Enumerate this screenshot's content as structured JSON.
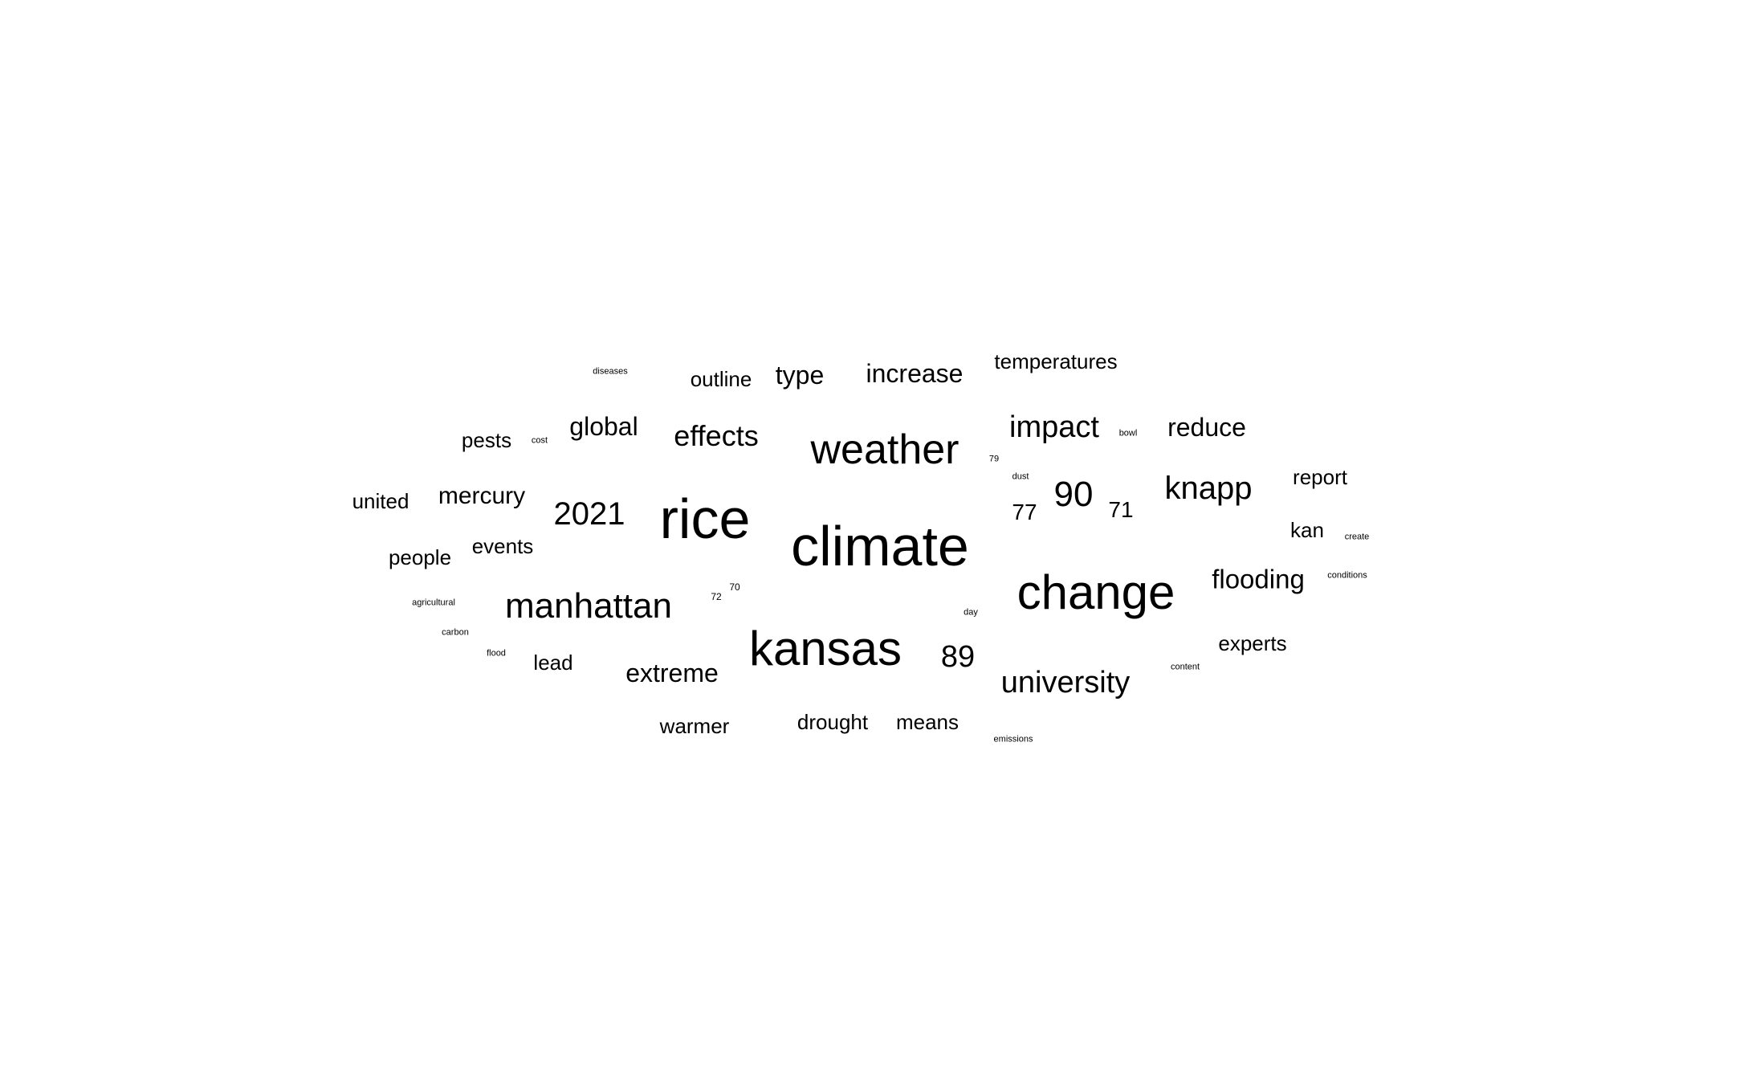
{
  "words": [
    {
      "id": "climate",
      "text": "climate"
    },
    {
      "id": "rice",
      "text": "rice"
    },
    {
      "id": "kansas",
      "text": "kansas"
    },
    {
      "id": "change",
      "text": "change"
    },
    {
      "id": "weather",
      "text": "weather"
    },
    {
      "id": "manhattan",
      "text": "manhattan"
    },
    {
      "id": "90",
      "text": "90"
    },
    {
      "id": "2021",
      "text": "2021"
    },
    {
      "id": "knapp",
      "text": "knapp"
    },
    {
      "id": "university",
      "text": "university"
    },
    {
      "id": "impact",
      "text": "impact"
    },
    {
      "id": "89",
      "text": "89"
    },
    {
      "id": "effects",
      "text": "effects"
    },
    {
      "id": "flooding",
      "text": "flooding"
    },
    {
      "id": "extreme",
      "text": "extreme"
    },
    {
      "id": "increase",
      "text": "increase"
    },
    {
      "id": "reduce",
      "text": "reduce"
    },
    {
      "id": "global",
      "text": "global"
    },
    {
      "id": "type",
      "text": "type"
    },
    {
      "id": "mercury",
      "text": "mercury"
    },
    {
      "id": "77",
      "text": "77"
    },
    {
      "id": "71",
      "text": "71"
    },
    {
      "id": "temperatures",
      "text": "temperatures"
    },
    {
      "id": "report",
      "text": "report"
    },
    {
      "id": "experts",
      "text": "experts"
    },
    {
      "id": "kan",
      "text": "kan"
    },
    {
      "id": "outline",
      "text": "outline"
    },
    {
      "id": "drought",
      "text": "drought"
    },
    {
      "id": "means",
      "text": "means"
    },
    {
      "id": "warmer",
      "text": "warmer"
    },
    {
      "id": "pests",
      "text": "pests"
    },
    {
      "id": "united",
      "text": "united"
    },
    {
      "id": "events",
      "text": "events"
    },
    {
      "id": "people",
      "text": "people"
    },
    {
      "id": "lead",
      "text": "lead"
    },
    {
      "id": "diseases",
      "text": "diseases"
    },
    {
      "id": "cost",
      "text": "cost"
    },
    {
      "id": "agricultural",
      "text": "agricultural"
    },
    {
      "id": "carbon",
      "text": "carbon"
    },
    {
      "id": "flood",
      "text": "flood"
    },
    {
      "id": "72",
      "text": "72"
    },
    {
      "id": "70",
      "text": "70"
    },
    {
      "id": "day",
      "text": "day"
    },
    {
      "id": "79",
      "text": "79"
    },
    {
      "id": "dust",
      "text": "dust"
    },
    {
      "id": "bowl",
      "text": "bowl"
    },
    {
      "id": "create",
      "text": "create"
    },
    {
      "id": "conditions",
      "text": "conditions"
    },
    {
      "id": "content",
      "text": "content"
    },
    {
      "id": "emissions",
      "text": "emissions"
    }
  ]
}
